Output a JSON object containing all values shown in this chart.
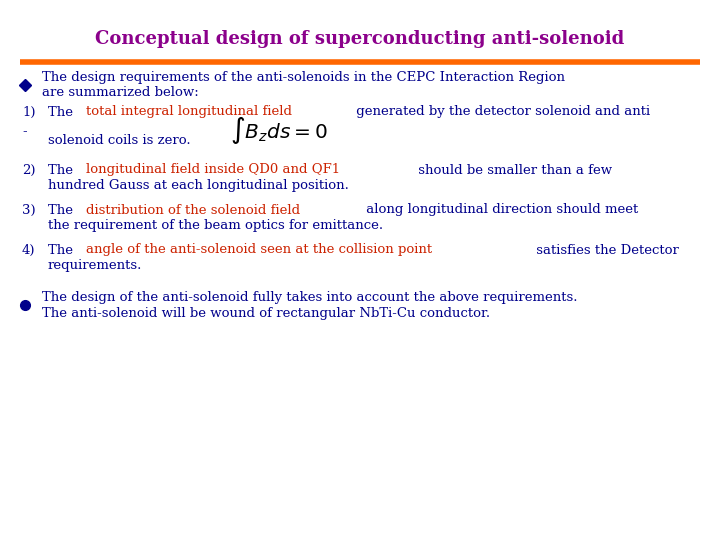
{
  "title": "Conceptual design of superconducting anti-solenoid",
  "title_color": "#8B008B",
  "title_fontsize": 13,
  "separator_color": "#FF6600",
  "bg_color": "#FFFFFF",
  "body_color": "#00008B",
  "red_color": "#CC2200",
  "bullet2_line1": "The design of the anti-solenoid fully takes into account the above requirements.",
  "bullet2_line2": "The anti-solenoid will be wound of rectangular NbTi-Cu conductor.",
  "font_body": 9.5
}
